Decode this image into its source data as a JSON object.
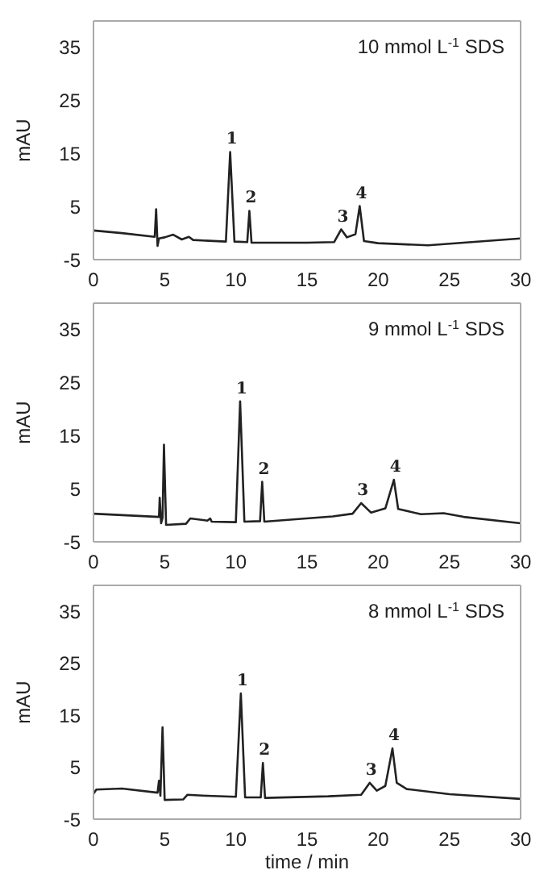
{
  "chart_data": [
    {
      "type": "line",
      "ylabel": "mAU",
      "xlim": [
        0,
        30
      ],
      "xticks": [
        0,
        5,
        10,
        15,
        20,
        25,
        30
      ],
      "ylim": [
        -5,
        40
      ],
      "yticks": [
        -5,
        5,
        15,
        25,
        35
      ],
      "x": [
        0,
        2,
        4.3,
        4.4,
        4.5,
        4.6,
        5,
        5.6,
        6.2,
        6.7,
        7,
        9.3,
        9.6,
        9.9,
        10.8,
        10.95,
        11.1,
        15,
        16.9,
        17.4,
        17.8,
        18.4,
        18.7,
        19,
        20,
        23.5,
        30
      ],
      "values": [
        0.5,
        0,
        -0.7,
        4.5,
        -2.4,
        -1,
        -0.8,
        -0.3,
        -1.2,
        -0.7,
        -1.3,
        -1.6,
        15.3,
        -1.6,
        -1.7,
        4.2,
        -1.8,
        -1.8,
        -1.7,
        0.7,
        -0.8,
        -0.2,
        5.1,
        -1.5,
        -1.9,
        -2.3,
        -1
      ],
      "color": "#222222",
      "annotations": [
        "10 mmol L$^{-1}$ SDS",
        {
          "text": "1",
          "x": 9.6,
          "y": 15.3
        },
        {
          "text": "2",
          "x": 10.95,
          "y": 4.2
        },
        {
          "text": "3",
          "x": 17.4,
          "y": 0.7
        },
        {
          "text": "4",
          "x": 18.7,
          "y": 5.1
        }
      ]
    },
    {
      "type": "line",
      "ylabel": "mAU",
      "xlim": [
        0,
        30
      ],
      "xticks": [
        0,
        5,
        10,
        15,
        20,
        25,
        30
      ],
      "ylim": [
        -5,
        40
      ],
      "yticks": [
        -5,
        5,
        15,
        25,
        35
      ],
      "x": [
        0,
        4.6,
        4.65,
        4.75,
        4.85,
        4.95,
        5.1,
        6.5,
        6.8,
        8,
        8.2,
        8.3,
        10,
        10.3,
        10.6,
        11.7,
        11.85,
        12,
        16.8,
        18.2,
        18.8,
        19.5,
        20.5,
        21.1,
        21.4,
        23,
        24.6,
        26,
        30
      ],
      "values": [
        0.3,
        -0.3,
        3.3,
        -1.5,
        -0.5,
        13.3,
        -1.8,
        -1.6,
        -0.6,
        -1,
        -0.6,
        -1.2,
        -1.3,
        21.5,
        -1.2,
        -1.1,
        6.3,
        -1.2,
        -0.2,
        0.3,
        2.3,
        0.5,
        1.3,
        6.7,
        1.2,
        0.2,
        0.4,
        -0.3,
        -1.5
      ],
      "color": "#222222",
      "annotations": [
        "9 mmol L$^{-1}$ SDS",
        {
          "text": "1",
          "x": 10.3,
          "y": 21.5
        },
        {
          "text": "2",
          "x": 11.85,
          "y": 6.3
        },
        {
          "text": "3",
          "x": 18.8,
          "y": 2.3
        },
        {
          "text": "4",
          "x": 21.1,
          "y": 6.7
        }
      ]
    },
    {
      "type": "line",
      "xlabel": "time / min",
      "ylabel": "mAU",
      "xlim": [
        0,
        30
      ],
      "xticks": [
        0,
        5,
        10,
        15,
        20,
        25,
        30
      ],
      "ylim": [
        -5,
        40
      ],
      "yticks": [
        -5,
        5,
        15,
        25,
        35
      ],
      "x": [
        0,
        0.2,
        2,
        4.5,
        4.6,
        4.7,
        4.85,
        5,
        6.3,
        6.6,
        8,
        10,
        10.35,
        10.65,
        11.75,
        11.9,
        12.05,
        16.5,
        18.8,
        19.4,
        19.9,
        20.5,
        21,
        21.3,
        22,
        25,
        30
      ],
      "values": [
        -0.1,
        0.7,
        0.9,
        0.1,
        2.4,
        -0.5,
        12.7,
        -1.3,
        -1.2,
        -0.3,
        -0.5,
        -0.7,
        19.2,
        -0.8,
        -0.8,
        5.8,
        -0.9,
        -0.6,
        -0.3,
        2,
        0.5,
        1.4,
        8.6,
        2,
        0.8,
        -0.2,
        -1.1
      ],
      "color": "#222222",
      "annotations": [
        "8 mmol L$^{-1}$ SDS",
        {
          "text": "1",
          "x": 10.35,
          "y": 19.2
        },
        {
          "text": "2",
          "x": 11.9,
          "y": 5.8
        },
        {
          "text": "3",
          "x": 19.4,
          "y": 2
        },
        {
          "text": "4",
          "x": 21,
          "y": 8.6
        }
      ]
    }
  ]
}
